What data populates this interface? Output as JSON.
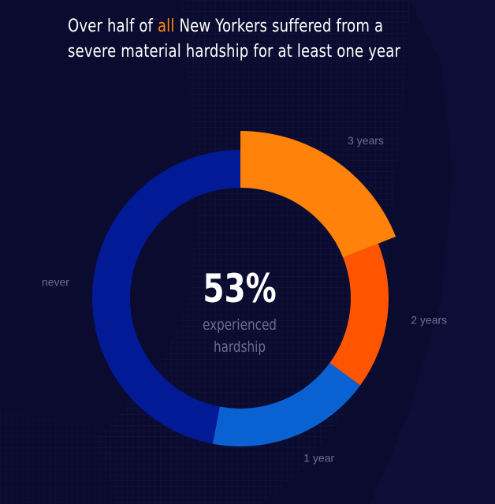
{
  "title": {
    "before": "Over half of ",
    "highlight": "all",
    "after": " New Yorkers suffered from a",
    "line2": "severe material hardship for at least one year"
  },
  "center": {
    "value": "53%",
    "caption_line1": "experienced",
    "caption_line2": "hardship"
  },
  "colors": {
    "background": "#0a0b2e",
    "highlight": "#ff8a0d"
  },
  "chart_data": {
    "type": "pie",
    "donut": true,
    "title": "Over half of all New Yorkers suffered from a severe material hardship for at least one year",
    "categories": [
      "3 years",
      "2 years",
      "1 year",
      "never"
    ],
    "values": [
      19,
      16,
      18,
      47
    ],
    "colors": [
      "#ff820a",
      "#ff5500",
      "#0a62d2",
      "#021a96"
    ],
    "labels": [
      "3 years",
      "2 years",
      "1 year",
      "never"
    ],
    "center_label": "53% experienced hardship"
  }
}
